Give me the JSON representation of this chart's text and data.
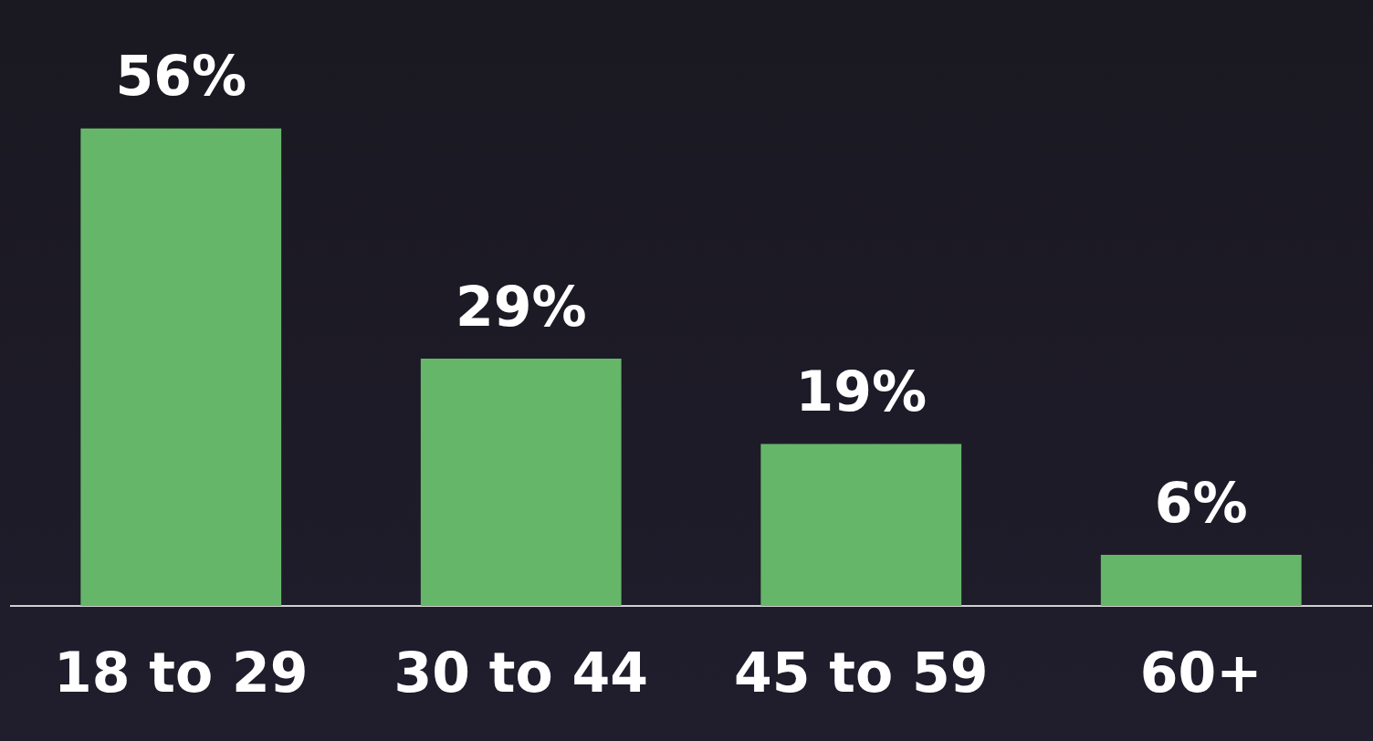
{
  "chart_data": {
    "type": "bar",
    "categories": [
      "18 to 29",
      "30 to 44",
      "45 to 59",
      "60+"
    ],
    "values": [
      56,
      29,
      19,
      6
    ],
    "color": "#66b66a",
    "value_labels": [
      "56%",
      "29%",
      "19%",
      "6%"
    ],
    "grid": false,
    "legend": false
  }
}
